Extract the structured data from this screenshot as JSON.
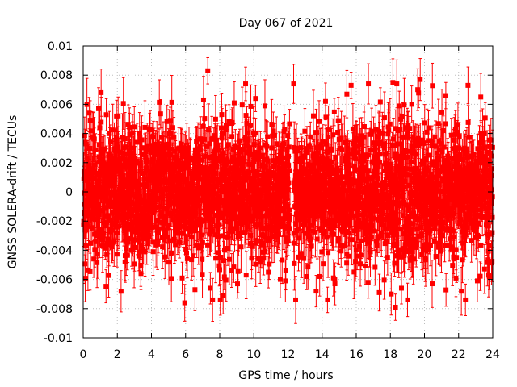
{
  "chart_data": {
    "type": "scatter",
    "title": "Day 067 of 2021",
    "xlabel": "GPS time / hours",
    "ylabel": "GNSS SOLERA-drift / TECUs",
    "xlim": [
      0,
      24
    ],
    "ylim": [
      -0.01,
      0.01
    ],
    "x_ticks": [
      0,
      2,
      4,
      6,
      8,
      10,
      12,
      14,
      16,
      18,
      20,
      22,
      24
    ],
    "y_ticks": [
      -0.01,
      -0.008,
      -0.006,
      -0.004,
      -0.002,
      0,
      0.002,
      0.004,
      0.006,
      0.008,
      0.01
    ],
    "x_tick_labels": [
      "0",
      "2",
      "4",
      "6",
      "8",
      "10",
      "12",
      "14",
      "16",
      "18",
      "20",
      "22",
      "24"
    ],
    "y_tick_labels": [
      "-0.01",
      "-0.008",
      "-0.006",
      "-0.004",
      "-0.002",
      "0",
      "0.002",
      "0.004",
      "0.006",
      "0.008",
      "0.01"
    ],
    "grid": true,
    "legend": "none",
    "series_color": "#ff0000",
    "error_bars": true,
    "sampling_interval_hours": 0.00833,
    "visible_notes": [
      "Dense red point cloud with vertical error bars across full 0-24 h range",
      "Most points fall between about -0.006 and 0.006 TECUs",
      "Visible gap near 12.2 h"
    ],
    "points": [
      {
        "x": 0.12,
        "y": 0.0034
      },
      {
        "x": 0.35,
        "y": 0.0054
      },
      {
        "x": 0.62,
        "y": -0.0046
      },
      {
        "x": 0.9,
        "y": 0.0057
      },
      {
        "x": 1.05,
        "y": 0.0068
      },
      {
        "x": 1.38,
        "y": -0.0043
      },
      {
        "x": 1.95,
        "y": 0.0052
      },
      {
        "x": 2.45,
        "y": -0.0048
      },
      {
        "x": 3.3,
        "y": 0.004
      },
      {
        "x": 4.1,
        "y": -0.0041
      },
      {
        "x": 5.1,
        "y": 0.0049
      },
      {
        "x": 5.8,
        "y": -0.0059
      },
      {
        "x": 5.95,
        "y": -0.0076
      },
      {
        "x": 6.55,
        "y": -0.0067
      },
      {
        "x": 7.05,
        "y": 0.0063
      },
      {
        "x": 7.3,
        "y": 0.0083
      },
      {
        "x": 7.45,
        "y": -0.0066
      },
      {
        "x": 8.2,
        "y": -0.0071
      },
      {
        "x": 8.85,
        "y": 0.0061
      },
      {
        "x": 9.55,
        "y": -0.0057
      },
      {
        "x": 10.1,
        "y": 0.0064
      },
      {
        "x": 10.85,
        "y": -0.0055
      },
      {
        "x": 11.55,
        "y": -0.006
      },
      {
        "x": 11.85,
        "y": -0.0061
      },
      {
        "x": 12.45,
        "y": -0.0074
      },
      {
        "x": 13.1,
        "y": -0.0058
      },
      {
        "x": 13.65,
        "y": -0.0068
      },
      {
        "x": 14.2,
        "y": 0.0062
      },
      {
        "x": 14.75,
        "y": -0.0063
      },
      {
        "x": 15.45,
        "y": 0.0067
      },
      {
        "x": 15.7,
        "y": 0.0073
      },
      {
        "x": 16.7,
        "y": -0.0062
      },
      {
        "x": 17.35,
        "y": -0.0069
      },
      {
        "x": 18.05,
        "y": -0.007
      },
      {
        "x": 18.15,
        "y": 0.0075
      },
      {
        "x": 18.3,
        "y": -0.0079
      },
      {
        "x": 18.65,
        "y": -0.0066
      },
      {
        "x": 19.25,
        "y": 0.006
      },
      {
        "x": 19.75,
        "y": 0.0077
      },
      {
        "x": 20.45,
        "y": -0.0063
      },
      {
        "x": 21.25,
        "y": 0.0066
      },
      {
        "x": 22.4,
        "y": -0.0074
      },
      {
        "x": 22.55,
        "y": 0.0073
      },
      {
        "x": 23.1,
        "y": -0.0061
      },
      {
        "x": 23.3,
        "y": 0.0065
      },
      {
        "x": 23.8,
        "y": -0.0058
      }
    ]
  }
}
